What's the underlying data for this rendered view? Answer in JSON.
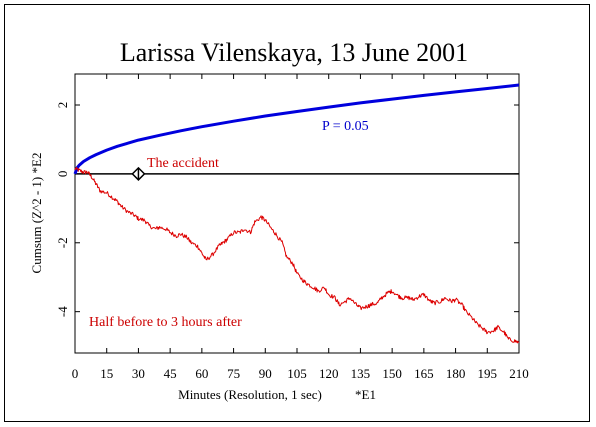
{
  "chart_data": {
    "type": "line",
    "title": "Larissa Vilenskaya, 13 June 2001",
    "xlabel": "Minutes (Resolution, 1 sec)",
    "xlabel_suffix": "*E1",
    "ylabel": "Cumsum (Z^2 - 1)  *E2",
    "xlim": [
      0,
      210
    ],
    "ylim": [
      -5.2,
      2.9
    ],
    "x_ticks": [
      0,
      15,
      30,
      45,
      60,
      75,
      90,
      105,
      120,
      135,
      150,
      165,
      180,
      195,
      210
    ],
    "x_tick_labels": [
      "0",
      "15",
      "30",
      "45",
      "60",
      "75",
      "90",
      "105",
      "120",
      "135",
      "150",
      "165",
      "180",
      "195",
      "210"
    ],
    "y_ticks": [
      2,
      0,
      -2,
      -4
    ],
    "y_tick_labels": [
      "2",
      "0",
      "-2",
      "-4"
    ],
    "series": [
      {
        "name": "P = 0.05",
        "color": "#0000dd",
        "x": [
          0,
          1,
          2,
          4,
          7,
          10,
          15,
          20,
          30,
          40,
          50,
          60,
          75,
          90,
          105,
          120,
          135,
          150,
          165,
          180,
          195,
          210
        ],
        "y": [
          0,
          0.18,
          0.25,
          0.36,
          0.47,
          0.56,
          0.69,
          0.8,
          0.98,
          1.12,
          1.25,
          1.37,
          1.53,
          1.68,
          1.81,
          1.94,
          2.06,
          2.17,
          2.28,
          2.38,
          2.48,
          2.58
        ]
      },
      {
        "name": "Half before to 3 hours after",
        "color": "#dd0000",
        "x": [
          0,
          2,
          4,
          6,
          8,
          10,
          12,
          15,
          18,
          20,
          22,
          25,
          28,
          30,
          33,
          35,
          38,
          40,
          43,
          45,
          48,
          50,
          53,
          55,
          58,
          60,
          62,
          65,
          68,
          70,
          72,
          75,
          78,
          80,
          83,
          85,
          88,
          90,
          93,
          95,
          98,
          100,
          103,
          105,
          108,
          110,
          113,
          115,
          118,
          120,
          123,
          125,
          128,
          130,
          133,
          135,
          138,
          140,
          143,
          145,
          148,
          150,
          153,
          155,
          158,
          160,
          163,
          165,
          168,
          170,
          173,
          175,
          178,
          180,
          183,
          185,
          188,
          190,
          193,
          195,
          198,
          200,
          203,
          205,
          208,
          210
        ],
        "y": [
          0.15,
          0.1,
          0.05,
          0.05,
          -0.1,
          -0.3,
          -0.5,
          -0.55,
          -0.7,
          -0.8,
          -0.95,
          -1.1,
          -1.2,
          -1.3,
          -1.35,
          -1.5,
          -1.6,
          -1.55,
          -1.6,
          -1.7,
          -1.8,
          -1.75,
          -1.85,
          -2.0,
          -2.1,
          -2.3,
          -2.5,
          -2.35,
          -2.1,
          -2.0,
          -1.9,
          -1.7,
          -1.7,
          -1.6,
          -1.7,
          -1.4,
          -1.25,
          -1.35,
          -1.6,
          -1.75,
          -2.0,
          -2.4,
          -2.6,
          -2.9,
          -3.1,
          -3.2,
          -3.3,
          -3.4,
          -3.3,
          -3.5,
          -3.6,
          -3.8,
          -3.7,
          -3.6,
          -3.8,
          -3.9,
          -3.85,
          -3.8,
          -3.75,
          -3.6,
          -3.45,
          -3.4,
          -3.55,
          -3.6,
          -3.6,
          -3.65,
          -3.55,
          -3.5,
          -3.7,
          -3.75,
          -3.7,
          -3.6,
          -3.7,
          -3.65,
          -3.8,
          -4.0,
          -4.2,
          -4.35,
          -4.5,
          -4.6,
          -4.55,
          -4.45,
          -4.6,
          -4.8,
          -4.85,
          -4.9
        ]
      }
    ],
    "zero_line": true,
    "marker": {
      "label": "The accident",
      "x": 30,
      "y": 0,
      "shape": "diamond"
    }
  }
}
